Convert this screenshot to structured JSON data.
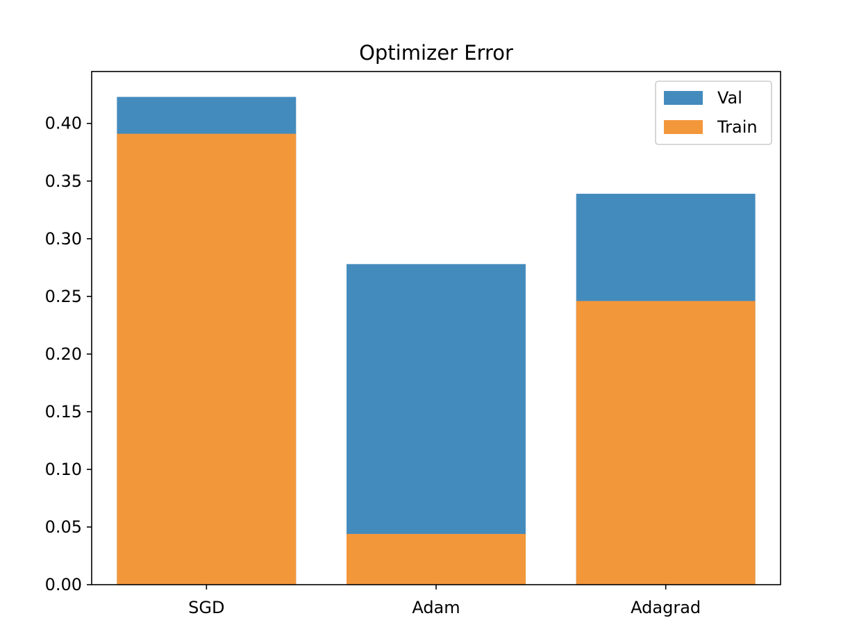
{
  "chart_data": {
    "type": "bar",
    "title": "Optimizer Error",
    "xlabel": "",
    "ylabel": "",
    "categories": [
      "SGD",
      "Adam",
      "Adagrad"
    ],
    "series": [
      {
        "name": "Val",
        "values": [
          0.423,
          0.278,
          0.339
        ],
        "color": "#448bbd"
      },
      {
        "name": "Train",
        "values": [
          0.391,
          0.044,
          0.246
        ],
        "color": "#f3973b"
      }
    ],
    "ylim": [
      0,
      0.445
    ],
    "yticks": [
      0.0,
      0.05,
      0.1,
      0.15,
      0.2,
      0.25,
      0.3,
      0.35,
      0.4
    ],
    "ytick_labels": [
      "0.00",
      "0.05",
      "0.10",
      "0.15",
      "0.20",
      "0.25",
      "0.30",
      "0.35",
      "0.40"
    ],
    "grid": false,
    "legend_position": "top-right",
    "bars_overlaid": true
  }
}
